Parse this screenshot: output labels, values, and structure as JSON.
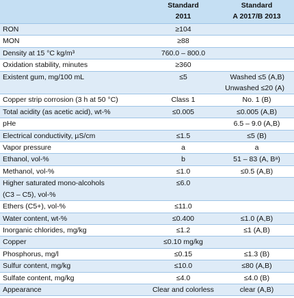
{
  "table": {
    "header": [
      [
        "Standard",
        "2011"
      ],
      [
        "Standard",
        "A 2017/B 2013"
      ]
    ],
    "rows": [
      [
        [
          "RON"
        ],
        [
          "≥104"
        ],
        null
      ],
      [
        [
          "MON"
        ],
        [
          "≥88"
        ],
        null
      ],
      [
        [
          "Density at 15 °C kg/m³"
        ],
        [
          "760.0 – 800.0"
        ],
        null
      ],
      [
        [
          "Oxidation stability, minutes"
        ],
        [
          "≥360"
        ],
        null
      ],
      [
        [
          "Existent gum, mg/100 mL"
        ],
        [
          "≤5"
        ],
        [
          "Washed ≤5 (A,B)",
          "Unwashed ≤20 (A)"
        ]
      ],
      [
        [
          "Copper strip corrosion (3 h at 50 °C)"
        ],
        [
          "Class 1"
        ],
        [
          "No. 1 (B)"
        ]
      ],
      [
        [
          "Total acidity (as acetic acid), wt-%"
        ],
        [
          "≤0.005"
        ],
        [
          "≤0.005 (A,B)"
        ]
      ],
      [
        [
          "pHe"
        ],
        null,
        [
          "6.5 – 9.0 (A,B)"
        ]
      ],
      [
        [
          "Electrical conductivity, µS/cm"
        ],
        [
          "≤1.5"
        ],
        [
          "≤5 (B)"
        ]
      ],
      [
        [
          "Vapor pressure"
        ],
        [
          "a"
        ],
        [
          "a"
        ]
      ],
      [
        [
          "Ethanol, vol-%"
        ],
        [
          "b"
        ],
        [
          "51 – 83 (A, Bᵃ)"
        ]
      ],
      [
        [
          "Methanol, vol-%"
        ],
        [
          "≤1.0"
        ],
        [
          "≤0.5 (A,B)"
        ]
      ],
      [
        [
          "Higher saturated mono-alcohols",
          "(C3 – C5), vol-%"
        ],
        [
          "≤6.0"
        ],
        null
      ],
      [
        [
          "Ethers (C5+), vol-%"
        ],
        [
          "≤11.0"
        ],
        null
      ],
      [
        [
          "Water content, wt-%"
        ],
        [
          "≤0.400"
        ],
        [
          "≤1.0 (A,B)"
        ]
      ],
      [
        [
          "Inorganic chlorides, mg/kg"
        ],
        [
          "≤1.2"
        ],
        [
          "≤1 (A,B)"
        ]
      ],
      [
        [
          "Copper"
        ],
        [
          "≤0.10 mg/kg"
        ],
        null
      ],
      [
        [
          "Phosphorus, mg/l"
        ],
        [
          "≤0.15"
        ],
        [
          "≤1.3 (B)"
        ]
      ],
      [
        [
          "Sulfur content, mg/kg"
        ],
        [
          "≤10.0"
        ],
        [
          "≤80 (A,B)"
        ]
      ],
      [
        [
          "Sulfate content, mg/kg"
        ],
        [
          "≤4.0"
        ],
        [
          "≤4.0 (B)"
        ]
      ],
      [
        [
          "Appearance"
        ],
        [
          "Clear and colorless"
        ],
        [
          "clear (A,B)"
        ]
      ]
    ]
  }
}
